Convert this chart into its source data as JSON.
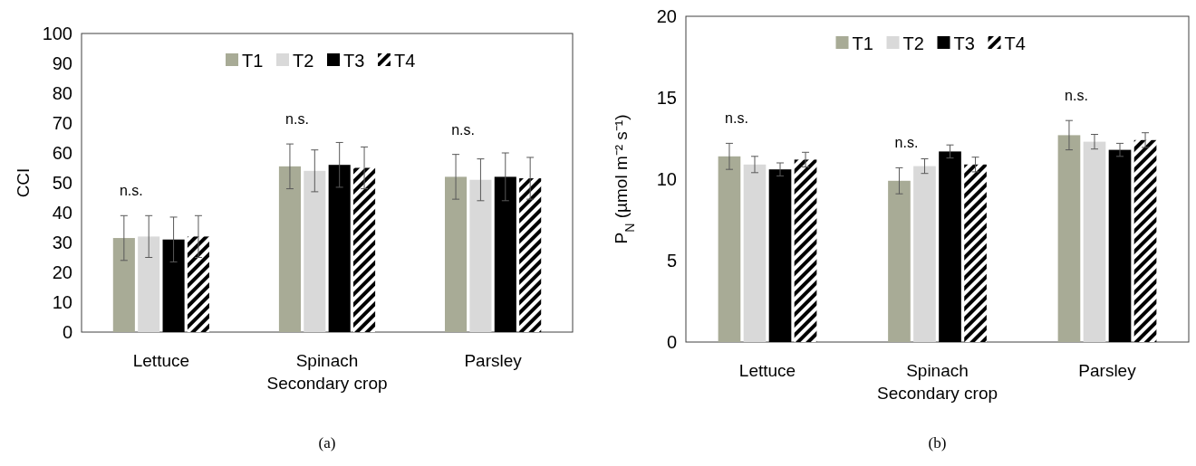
{
  "chart_data": [
    {
      "type": "bar",
      "ylabel": "CCI",
      "categories": [
        "Lettuce",
        "Spinach\nSecondary crop",
        "Parsley"
      ],
      "ylim": [
        0,
        100
      ],
      "yticks": [
        0,
        10,
        20,
        30,
        40,
        50,
        60,
        70,
        80,
        90,
        100
      ],
      "grid": false,
      "legend": "top",
      "series": [
        {
          "name": "T1",
          "color": "#a8ab96",
          "values": [
            31.5,
            55.5,
            52
          ],
          "errors": [
            7.5,
            7.5,
            7.5
          ]
        },
        {
          "name": "T2",
          "color": "#d9d9d9",
          "values": [
            32,
            54,
            51
          ],
          "errors": [
            7,
            7,
            7
          ]
        },
        {
          "name": "T3",
          "color": "#000000",
          "values": [
            31,
            56,
            52
          ],
          "errors": [
            7.5,
            7.5,
            8
          ]
        },
        {
          "name": "T4",
          "color": "#000000",
          "values": [
            32,
            55,
            51.5
          ],
          "errors": [
            7,
            7,
            7
          ]
        }
      ],
      "annotations": [
        "n.s.",
        "n.s.",
        "n.s.",
        "(a)"
      ]
    },
    {
      "type": "bar",
      "ylabel": "P$_{N}$ (µmol m⁻² s⁻¹)",
      "categories": [
        "Lettuce",
        "Spinach\nSecondary crop",
        "Parsley"
      ],
      "ylim": [
        0,
        20
      ],
      "yticks": [
        0,
        5,
        10,
        15,
        20
      ],
      "grid": false,
      "legend": "top",
      "series": [
        {
          "name": "T1",
          "color": "#a8ab96",
          "values": [
            11.4,
            9.9,
            12.7
          ],
          "errors": [
            0.8,
            0.8,
            0.9
          ]
        },
        {
          "name": "T2",
          "color": "#d9d9d9",
          "values": [
            10.9,
            10.8,
            12.3
          ],
          "errors": [
            0.5,
            0.45,
            0.45
          ]
        },
        {
          "name": "T3",
          "color": "#000000",
          "values": [
            10.6,
            11.7,
            11.8
          ],
          "errors": [
            0.4,
            0.4,
            0.4
          ]
        },
        {
          "name": "T4",
          "color": "#000000",
          "values": [
            11.2,
            10.9,
            12.4
          ],
          "errors": [
            0.45,
            0.45,
            0.45
          ]
        }
      ],
      "annotations": [
        "n.s.",
        "n.s.",
        "n.s.",
        "(b)"
      ]
    }
  ]
}
